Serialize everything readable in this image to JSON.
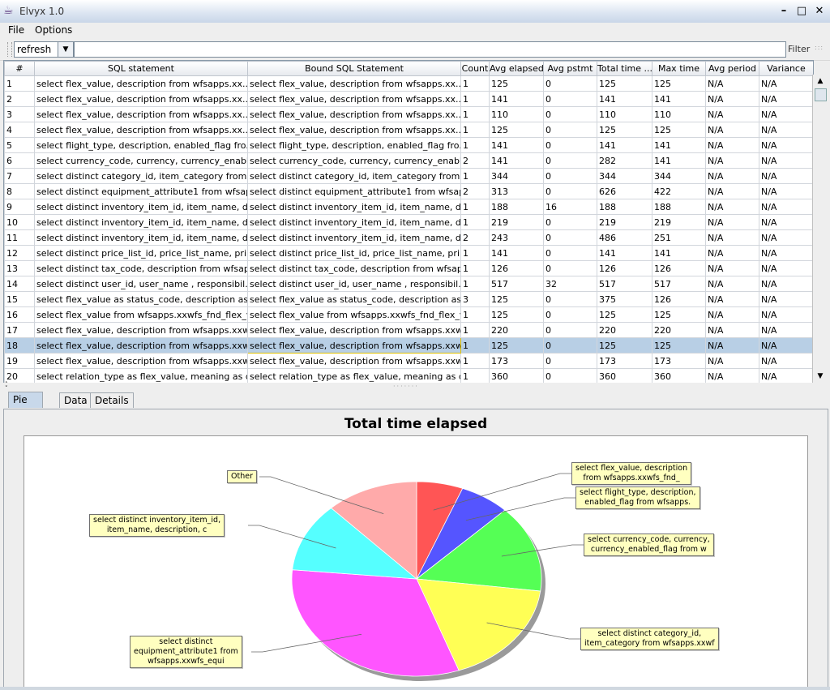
{
  "window": {
    "title": "Elvyx 1.0"
  },
  "menu": [
    "File",
    "Options"
  ],
  "toolbar": {
    "combo_value": "refresh",
    "filter_label": "Filter"
  },
  "table": {
    "columns": [
      "#",
      "SQL statement",
      "Bound SQL Statement",
      "Count",
      "Avg elapsed",
      "Avg pstmt",
      "Total time ...",
      "Max time",
      "Avg period",
      "Variance"
    ],
    "rows": [
      [
        "1",
        "select   flex_value, description  from wfsapps.xx...",
        "select   flex_value, description  from wfsapps.xx...",
        "1",
        "125",
        "0",
        "125",
        "125",
        "N/A",
        "N/A"
      ],
      [
        "2",
        "select   flex_value, description  from wfsapps.xx...",
        "select   flex_value, description  from wfsapps.xx...",
        "1",
        "141",
        "0",
        "141",
        "141",
        "N/A",
        "N/A"
      ],
      [
        "3",
        "select   flex_value, description  from wfsapps.xx...",
        "select   flex_value, description  from wfsapps.xx...",
        "1",
        "110",
        "0",
        "110",
        "110",
        "N/A",
        "N/A"
      ],
      [
        "4",
        "select   flex_value, description  from wfsapps.xx...",
        "select   flex_value, description  from wfsapps.xx...",
        "1",
        "125",
        "0",
        "125",
        "125",
        "N/A",
        "N/A"
      ],
      [
        "5",
        "select flight_type, description, enabled_flag fro...",
        "select flight_type, description, enabled_flag fro...",
        "1",
        "141",
        "0",
        "141",
        "141",
        "N/A",
        "N/A"
      ],
      [
        "6",
        "select currency_code, currency, currency_enabl...",
        "select currency_code, currency, currency_enabl...",
        "2",
        "141",
        "0",
        "282",
        "141",
        "N/A",
        "N/A"
      ],
      [
        "7",
        "select distinct category_id, item_category from ...",
        "select distinct category_id, item_category from ...",
        "1",
        "344",
        "0",
        "344",
        "344",
        "N/A",
        "N/A"
      ],
      [
        "8",
        "select distinct equipment_attribute1 from wfsap...",
        "select distinct equipment_attribute1 from wfsap...",
        "2",
        "313",
        "0",
        "626",
        "422",
        "N/A",
        "N/A"
      ],
      [
        "9",
        "select distinct inventory_item_id, item_name, de...",
        "select distinct inventory_item_id, item_name, de...",
        "1",
        "188",
        "16",
        "188",
        "188",
        "N/A",
        "N/A"
      ],
      [
        "10",
        "select distinct inventory_item_id, item_name, de...",
        "select distinct inventory_item_id, item_name, de...",
        "1",
        "219",
        "0",
        "219",
        "219",
        "N/A",
        "N/A"
      ],
      [
        "11",
        "select distinct inventory_item_id, item_name, de...",
        "select distinct inventory_item_id, item_name, de...",
        "2",
        "243",
        "0",
        "486",
        "251",
        "N/A",
        "N/A"
      ],
      [
        "12",
        "select distinct price_list_id, price_list_name, pri...",
        "select distinct price_list_id, price_list_name, pri...",
        "1",
        "141",
        "0",
        "141",
        "141",
        "N/A",
        "N/A"
      ],
      [
        "13",
        "select distinct tax_code, description from wfsap...",
        "select distinct tax_code, description from wfsap...",
        "1",
        "126",
        "0",
        "126",
        "126",
        "N/A",
        "N/A"
      ],
      [
        "14",
        "select distinct user_id, user_name , responsibil...",
        "select distinct user_id, user_name , responsibil...",
        "1",
        "517",
        "32",
        "517",
        "517",
        "N/A",
        "N/A"
      ],
      [
        "15",
        "select flex_value as status_code, description as...",
        "select flex_value as status_code, description as...",
        "3",
        "125",
        "0",
        "375",
        "126",
        "N/A",
        "N/A"
      ],
      [
        "16",
        "select flex_value from wfsapps.xxwfs_fnd_flex_v...",
        "select flex_value from wfsapps.xxwfs_fnd_flex_v...",
        "1",
        "125",
        "0",
        "125",
        "125",
        "N/A",
        "N/A"
      ],
      [
        "17",
        "select flex_value, description from wfsapps.xxwf...",
        "select flex_value, description from wfsapps.xxwf...",
        "1",
        "220",
        "0",
        "220",
        "220",
        "N/A",
        "N/A"
      ],
      [
        "18",
        "select flex_value, description from wfsapps.xxwf...",
        "select flex_value, description from wfsapps.xxwf...",
        "1",
        "125",
        "0",
        "125",
        "125",
        "N/A",
        "N/A"
      ],
      [
        "19",
        "select flex_value, description from wfsapps.xxwf...",
        "select flex_value, description from wfsapps.xxwf...",
        "1",
        "173",
        "0",
        "173",
        "173",
        "N/A",
        "N/A"
      ],
      [
        "20",
        "select relation_type as flex_value, meaning as d...",
        "select relation_type as flex_value, meaning as d...",
        "1",
        "360",
        "0",
        "360",
        "360",
        "N/A",
        "N/A"
      ]
    ],
    "selected_row": 17
  },
  "tabs": [
    "Pie chart",
    "Data",
    "Details"
  ],
  "active_tab": 0,
  "chart_data": {
    "type": "pie",
    "title": "Total time elapsed",
    "slices": [
      {
        "label": "select   flex_value, description\nfrom wfsapps.xxwfs_fnd_",
        "value": 6,
        "color": "#ff5555"
      },
      {
        "label": "select flight_type, description,\nenabled_flag from wfsapps.",
        "value": 6.5,
        "color": "#5555ff"
      },
      {
        "label": "select currency_code, currency,\ncurrency_enabled_flag from w",
        "value": 14.5,
        "color": "#55ff55"
      },
      {
        "label": "select distinct category_id,\nitem_category from wfsapps.xxwf",
        "value": 17.5,
        "color": "#ffff55"
      },
      {
        "label": "select distinct\nequipment_attribute1 from\nwfsapps.xxwfs_equi",
        "value": 32,
        "color": "#ff55ff"
      },
      {
        "label": "select distinct inventory_item_id,\nitem_name, description, c",
        "value": 11.5,
        "color": "#55ffff"
      },
      {
        "label": "Other",
        "value": 12,
        "color": "#ffaaaa"
      }
    ]
  }
}
